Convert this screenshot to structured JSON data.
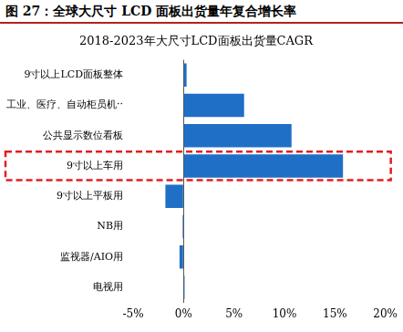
{
  "chart_data": {
    "type": "bar",
    "orientation": "horizontal",
    "title": "图 27：全球大尺寸 LCD 面板出货量年复合增长率",
    "subtitle": "2018-2023年大尺寸LCD面板出货量CAGR",
    "categories": [
      "9寸以上LCD面板整体",
      "工业、医疗、自动柜员机··",
      "公共显示数位看板",
      "9寸以上车用",
      "9寸以上平板用",
      "NB用",
      "监视器/AIO用",
      "电视用"
    ],
    "values": [
      0.3,
      6.0,
      10.7,
      15.8,
      -1.8,
      -0.1,
      -0.4,
      0.1
    ],
    "color": "#1f6fc6",
    "xlim": [
      -5,
      20
    ],
    "xticks": [
      {
        "value": -5,
        "label": "-5%"
      },
      {
        "value": 0,
        "label": "0%"
      },
      {
        "value": 5,
        "label": "5%"
      },
      {
        "value": 10,
        "label": "10%"
      },
      {
        "value": 15,
        "label": "15%"
      },
      {
        "value": 20,
        "label": "20%"
      }
    ],
    "grid": false
  }
}
